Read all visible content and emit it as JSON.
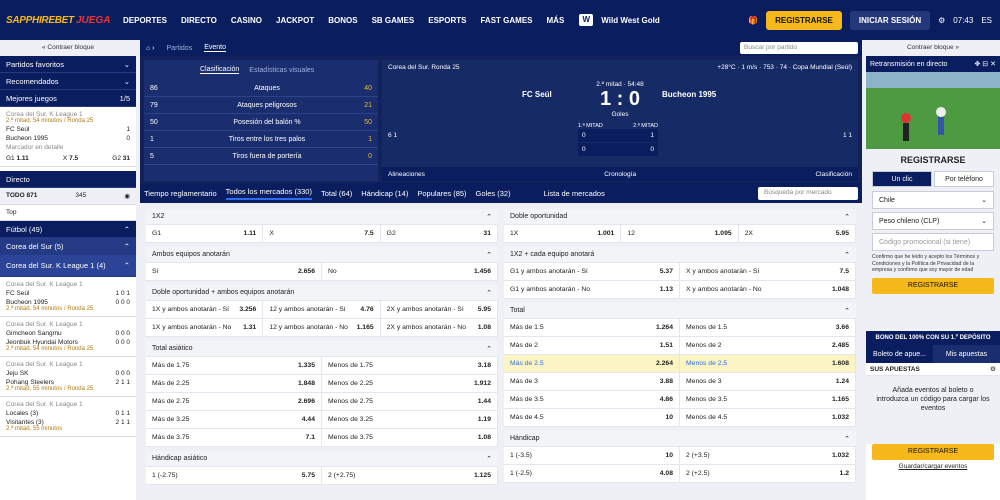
{
  "header": {
    "logo": "SAPPHIREBET",
    "logo2": "JUEGA",
    "nav": [
      "DEPORTES",
      "DIRECTO",
      "CASINO",
      "JACKPOT",
      "BONOS",
      "SB GAMES",
      "ESPORTS",
      "FAST GAMES",
      "MÁS"
    ],
    "promo": "Wild West Gold",
    "register": "REGISTRARSE",
    "login": "INICIAR SESIÓN",
    "time": "07:43",
    "lang": "ES"
  },
  "left": {
    "collapse": "« Contraer bloque",
    "favoritos": "Partidos favoritos",
    "recomendados": "Recomendados",
    "mejores": "Mejores juegos",
    "pager": "1/5",
    "match1": {
      "league": "Corea del Sur. K League 1",
      "time": "2.ª mitad, 54 minutos / Ronda 25",
      "t1": "FC Seúl",
      "s1": "1",
      "t2": "Bucheon 1995",
      "s2": "0",
      "detalle": "Marcador en detalle",
      "o1": "1.11",
      "ox": "7.5",
      "o2": "31",
      "l1": "G1",
      "lx": "X",
      "l2": "G2"
    },
    "directo": "Directo",
    "todo": "TODO 871",
    "live345": "345",
    "top": "Top",
    "futbol": "Fútbol (49)",
    "corea": "Corea del Sur (5)",
    "kleague": "Corea del Sur. K League 1 (4)",
    "lm": [
      {
        "league": "Corea del Sur. K League 1",
        "t1": "FC Seúl",
        "s1": "1 0 1",
        "t2": "Bucheon 1995",
        "s2": "0 0 0",
        "time": "2.ª mitad, 54 minutos / Ronda 25"
      },
      {
        "league": "Corea del Sur. K League 1",
        "t1": "Gimcheon Sangmu",
        "s1": "0 0 0",
        "t2": "Jeonbuk Hyundai Motors",
        "s2": "0 0 0",
        "time": "2.ª mitad, 54 minutos / Ronda 25"
      },
      {
        "league": "Corea del Sur. K League 1",
        "t1": "Jeju SK",
        "s1": "0 0 0",
        "t2": "Pohang Steelers",
        "s2": "2 1 1",
        "time": "2.ª mitad, 55 minutos / Ronda 25"
      },
      {
        "league": "Corea del Sur. K League 1",
        "t1": "Locales (3)",
        "s1": "0 1 1",
        "t2": "Visitantes (3)",
        "s2": "2 1 1",
        "time": "2.ª mitad, 55 minutos"
      }
    ]
  },
  "event": {
    "tabs": [
      "Partidos",
      "Evento"
    ],
    "search": "Buscar por partido",
    "statTabs": [
      "Clasificación",
      "Estadísticas visuales"
    ],
    "stats": [
      {
        "l": "86",
        "n": "Ataques",
        "r": "40"
      },
      {
        "l": "79",
        "n": "Ataques peligrosos",
        "r": "21"
      },
      {
        "l": "50",
        "n": "Posesión del balón %",
        "r": "50"
      },
      {
        "l": "1",
        "n": "Tiros entre los tres palos",
        "r": "1"
      },
      {
        "l": "5",
        "n": "Tiros fuera de portería",
        "r": "0"
      }
    ],
    "league": "Corea del Sur. Ronda 25",
    "weather": "+28°C",
    "wind": "1 m/s",
    "pressure": "753",
    "hum": "74",
    "comp": "Copa Mundial (Seúl)",
    "period": "2.ª mitad",
    "clock": "54:48",
    "home": "FC Seúl",
    "away": "Bucheon 1995",
    "score": "1 : 0",
    "goles": "Goles",
    "h1": "1.ª MITAD",
    "h2": "2.ª MITAD",
    "b1": [
      "0",
      "1"
    ],
    "b2": [
      "0",
      "0"
    ],
    "homeCards": [
      "6",
      "1"
    ],
    "awayCards": [
      "1",
      "1"
    ],
    "alineaciones": "Alineaciones",
    "cronologia": "Cronología",
    "clasificacion": "Clasificación"
  },
  "markets": {
    "filter": "Tiempo reglamentario",
    "tabs": [
      "Todos los mercados (330)",
      "Total (64)",
      "Hándicap (14)",
      "Populares (85)",
      "Goles (32)"
    ],
    "list": "Lista de mercados",
    "search": "Búsqueda por mercado",
    "left": [
      {
        "title": "1X2",
        "rows": [
          [
            [
              "G1",
              "1.11"
            ],
            [
              "X",
              "7.5"
            ],
            [
              "G2",
              "31"
            ]
          ]
        ]
      },
      {
        "title": "Ambos equipos anotarán",
        "rows": [
          [
            [
              "Sí",
              "2.656"
            ],
            [
              "No",
              "1.456"
            ]
          ]
        ]
      },
      {
        "title": "Doble oportunidad + ambos equipos anotarán",
        "rows": [
          [
            [
              "1X y ambos anotarán - Sí",
              "3.256"
            ],
            [
              "12 y ambos anotarán - Sí",
              "4.76"
            ],
            [
              "2X y ambos anotarán - Sí",
              "5.95"
            ]
          ],
          [
            [
              "1X y ambos anotarán - No",
              "1.31"
            ],
            [
              "12 y ambos anotarán - No",
              "1.165"
            ],
            [
              "2X y ambos anotarán - No",
              "1.08"
            ]
          ]
        ]
      },
      {
        "title": "Total asiático",
        "rows": [
          [
            [
              "Más de 1.75",
              "1.335"
            ],
            [
              "Menos de 1.75",
              "3.18"
            ]
          ],
          [
            [
              "Más de 2.25",
              "1.848"
            ],
            [
              "Menos de 2.25",
              "1.912"
            ]
          ],
          [
            [
              "Más de 2.75",
              "2.696"
            ],
            [
              "Menos de 2.75",
              "1.44"
            ]
          ],
          [
            [
              "Más de 3.25",
              "4.44"
            ],
            [
              "Menos de 3.25",
              "1.19"
            ]
          ],
          [
            [
              "Más de 3.75",
              "7.1"
            ],
            [
              "Menos de 3.75",
              "1.08"
            ]
          ]
        ]
      },
      {
        "title": "Hándicap asiático",
        "rows": [
          [
            [
              "1 (-2.75)",
              "5.75"
            ],
            [
              "2 (+2.75)",
              "1.125"
            ]
          ]
        ]
      }
    ],
    "right": [
      {
        "title": "Doble oportunidad",
        "rows": [
          [
            [
              "1X",
              "1.001"
            ],
            [
              "12",
              "1.095"
            ],
            [
              "2X",
              "5.95"
            ]
          ]
        ]
      },
      {
        "title": "1X2 + cada equipo anotará",
        "rows": [
          [
            [
              "G1 y ambos anotarán - Sí",
              "5.37"
            ],
            [
              "X y ambos anotarán - Sí",
              "7.5"
            ]
          ],
          [
            [
              "G1 y ambos anotarán - No",
              "1.13"
            ],
            [
              "X y ambos anotarán - No",
              "1.048"
            ]
          ]
        ]
      },
      {
        "title": "Total",
        "rows": [
          [
            [
              "Más de 1.5",
              "1.264"
            ],
            [
              "Menos de 1.5",
              "3.66"
            ]
          ],
          [
            [
              "Más de 2",
              "1.51"
            ],
            [
              "Menos de 2",
              "2.485"
            ]
          ],
          [
            [
              "Más de 2.5",
              "2.264"
            ],
            [
              "Menos de 2.5",
              "1.608"
            ]
          ],
          [
            [
              "Más de 3",
              "3.88"
            ],
            [
              "Menos de 3",
              "1.24"
            ]
          ],
          [
            [
              "Más de 3.5",
              "4.86"
            ],
            [
              "Menos de 3.5",
              "1.165"
            ]
          ],
          [
            [
              "Más de 4.5",
              "10"
            ],
            [
              "Menos de 4.5",
              "1.032"
            ]
          ]
        ]
      },
      {
        "title": "Hándicap",
        "rows": [
          [
            [
              "1 (-3.5)",
              "10"
            ],
            [
              "2 (+3.5)",
              "1.032"
            ]
          ],
          [
            [
              "1 (-2.5)",
              "4.08"
            ],
            [
              "2 (+2.5)",
              "1.2"
            ]
          ]
        ]
      }
    ]
  },
  "right": {
    "collapse": "Contraer bloque »",
    "stream": "Retransmisión en directo",
    "regTitle": "REGISTRARSE",
    "oneClick": "Un clic",
    "phone": "Por teléfono",
    "country": "Chile",
    "currency": "Peso chileno (CLP)",
    "promo": "Código promocional (si tiene)",
    "terms": "Confirmo que he leído y acepto los Términos y Condiciones y la Política de Privacidad de la empresa y confirmo que soy mayor de edad",
    "regBtn": "REGISTRARSE",
    "bonus": "BONO DEL 100% CON SU 1.º DEPÓSITO",
    "tab1": "Boleto de apue...",
    "tab2": "Mis apuestas",
    "sus": "SUS APUESTAS",
    "empty": "Añada eventos al boleto o introduzca un código para cargar los eventos",
    "regBtn2": "REGISTRARSE",
    "guardar": "Guardar/cargar eventos"
  }
}
